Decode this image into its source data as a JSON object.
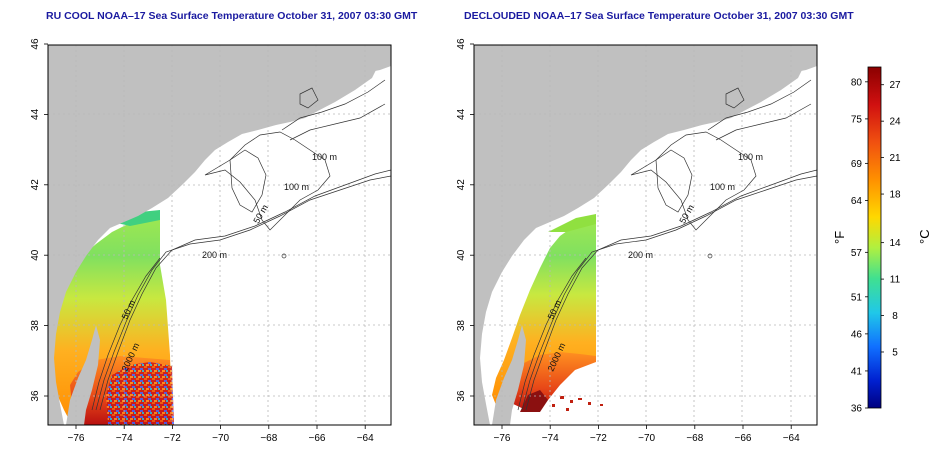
{
  "panels": [
    {
      "id": "left",
      "title": "RU COOL NOAA–17 Sea Surface Temperature October 31, 2007 03:30 GMT"
    },
    {
      "id": "right",
      "title": "DECLOUDED NOAA–17 Sea Surface Temperature October 31, 2007 03:30 GMT"
    }
  ],
  "map": {
    "x_ticks": [
      "−76",
      "−74",
      "−72",
      "−70",
      "−68",
      "−66",
      "−64"
    ],
    "y_ticks": [
      "36",
      "38",
      "40",
      "42",
      "44",
      "46"
    ],
    "lon_range": [
      -77.2,
      -63.0
    ],
    "lat_range": [
      35.0,
      46.0
    ],
    "contour_labels": [
      "100 m",
      "100 m",
      "50 m",
      "200 m",
      "50 m",
      "2000 m"
    ],
    "colors": {
      "land": "#c0c0c0",
      "grid": "#b5b5b5",
      "contour": "#333333"
    }
  },
  "colorbar": {
    "f_ticks": [
      "80",
      "75",
      "69",
      "64",
      "57",
      "51",
      "46",
      "41",
      "36"
    ],
    "c_ticks": [
      "27",
      "24",
      "21",
      "18",
      "14",
      "11",
      "8",
      "5"
    ],
    "f_unit": "°F",
    "c_unit": "°C",
    "stops": [
      "#8b0000",
      "#e02010",
      "#ff8000",
      "#ffd000",
      "#c0f040",
      "#40e080",
      "#20d0e0",
      "#1080ff",
      "#0030d0",
      "#000090"
    ]
  }
}
